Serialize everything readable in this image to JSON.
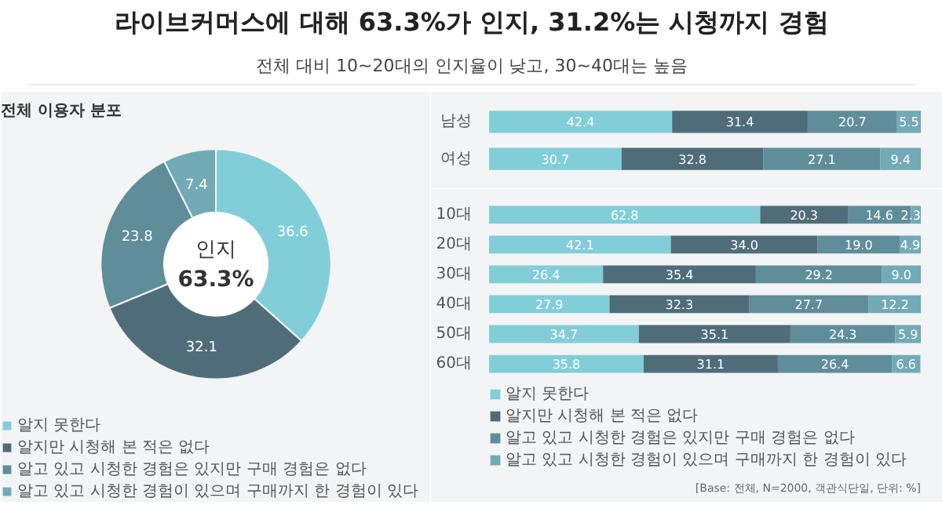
{
  "chart_data": [
    {
      "type": "other",
      "title": "라이브커머스에 대해 63.3%가 인지, 31.2%는 시청까지 경험",
      "subtitle": "전체 대비 10~20대의 인지율이 낮고, 30~40대는 높음"
    },
    {
      "type": "donut",
      "title": "전체 이용자 분포",
      "categories": [
        "알지 못한다",
        "알지만 시청해 본 적은 없다",
        "알고 있고 시청한 경험은 있지만 구매 경험은 없다",
        "알고 있고 시청한 경험이 있으며 구매까지 한 경험이 있다"
      ],
      "values": [
        36.6,
        32.1,
        23.8,
        7.4
      ],
      "colors": [
        "#82ced8",
        "#4f6d79",
        "#5f8d9a",
        "#72aab6"
      ],
      "data_labels": true,
      "legend": "bottom",
      "annotations": [
        "인지",
        "63.3%"
      ]
    },
    {
      "type": "bar",
      "orientation": "horizontal",
      "stacked": true,
      "categories": [
        "남성",
        "여성"
      ],
      "xlim": [
        0,
        100
      ],
      "tick_labels": "y",
      "data_labels": true,
      "legend": false,
      "series": [
        {
          "color": "#82ced8",
          "values": [
            42.4,
            30.7
          ]
        },
        {
          "color": "#4f6d79",
          "values": [
            31.4,
            32.8
          ]
        },
        {
          "color": "#5f8d9a",
          "values": [
            20.7,
            27.1
          ]
        },
        {
          "color": "#72aab6",
          "values": [
            5.5,
            9.4
          ]
        }
      ]
    },
    {
      "type": "bar",
      "orientation": "horizontal",
      "stacked": true,
      "categories": [
        "10대",
        "20대",
        "30대",
        "40대",
        "50대",
        "60대"
      ],
      "xlim": [
        0,
        100
      ],
      "tick_labels": "y",
      "data_labels": true,
      "legend": "bottom",
      "annotations": [
        "[Base: 전체, N=2000, 객관식단일, 단위: %]"
      ],
      "series": [
        {
          "name": "알지 못한다",
          "color": "#82ced8",
          "values": [
            62.8,
            42.1,
            26.4,
            27.9,
            34.7,
            35.8
          ],
          "value_labels": [
            "62.8",
            "42.1",
            "26.4",
            "27.9",
            "34.7",
            "35.8"
          ]
        },
        {
          "name": "알지만 시청해 본 적은 없다",
          "color": "#4f6d79",
          "values": [
            20.3,
            34.0,
            35.4,
            32.3,
            35.1,
            31.1
          ],
          "value_labels": [
            "20.3",
            "34.0",
            "35.4",
            "32.3",
            "35.1",
            "31.1"
          ]
        },
        {
          "name": "알고 있고 시청한 경험은 있지만 구매 경험은 없다",
          "color": "#5f8d9a",
          "values": [
            14.6,
            19.0,
            29.2,
            27.7,
            24.3,
            26.4
          ],
          "value_labels": [
            "14.6",
            "19.0",
            "29.2",
            "27.7",
            "24.3",
            "26.4"
          ]
        },
        {
          "name": "알고 있고 시청한 경험이 있으며 구매까지 한 경험이 있다",
          "color": "#72aab6",
          "values": [
            2.3,
            4.9,
            9.0,
            12.2,
            5.9,
            6.6
          ],
          "value_labels": [
            "2.3",
            "4.9",
            "9.0",
            "12.2",
            "5.9",
            "6.6"
          ]
        }
      ]
    }
  ]
}
